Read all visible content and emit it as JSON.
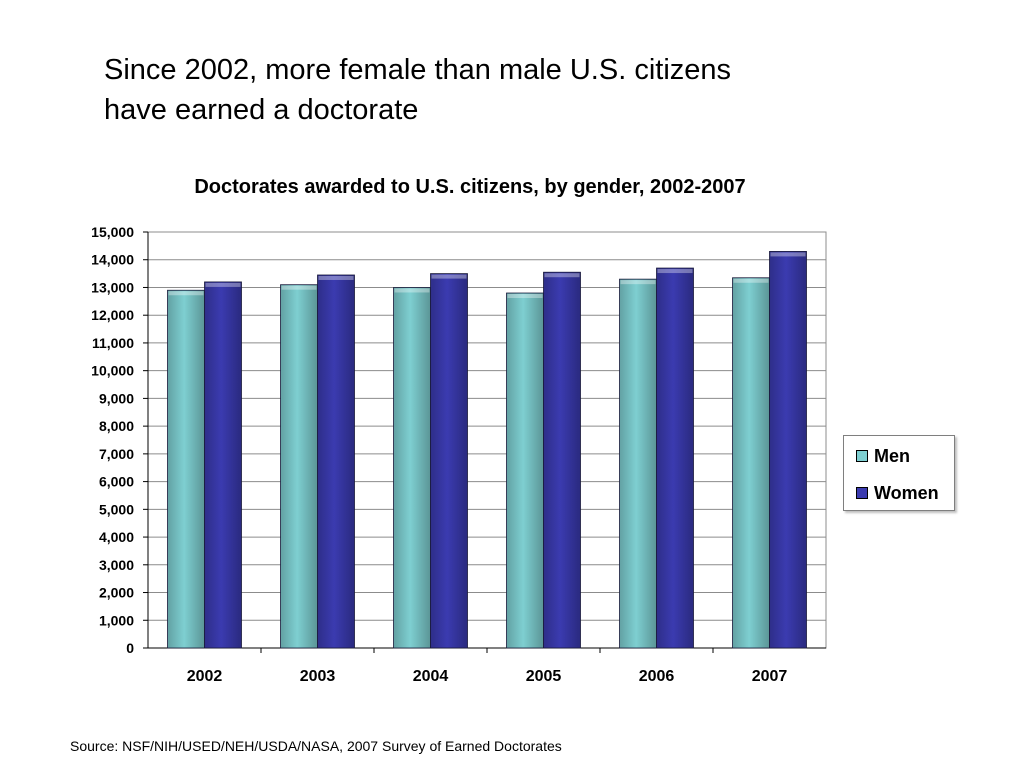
{
  "slide": {
    "title_lines": [
      "Since 2002, more female than male U.S. citizens",
      "have earned a doctorate"
    ],
    "source": "Source: NSF/NIH/USED/NEH/USDA/NASA, 2007 Survey of Earned Doctorates"
  },
  "chart_data": {
    "type": "bar",
    "title": "Doctorates awarded to U.S. citizens, by gender, 2002-2007",
    "xlabel": "",
    "ylabel": "",
    "categories": [
      "2002",
      "2003",
      "2004",
      "2005",
      "2006",
      "2007"
    ],
    "series": [
      {
        "name": "Men",
        "color": "#7ecfd1",
        "values": [
          12900,
          13100,
          13000,
          12800,
          13300,
          13350
        ]
      },
      {
        "name": "Women",
        "color": "#3b3bb0",
        "values": [
          13200,
          13450,
          13500,
          13550,
          13700,
          14300
        ]
      }
    ],
    "ylim": [
      0,
      15000
    ],
    "yticks": [
      0,
      1000,
      2000,
      3000,
      4000,
      5000,
      6000,
      7000,
      8000,
      9000,
      10000,
      11000,
      12000,
      13000,
      14000,
      15000
    ],
    "ytick_labels": [
      "0",
      "1,000",
      "2,000",
      "3,000",
      "4,000",
      "5,000",
      "6,000",
      "7,000",
      "8,000",
      "9,000",
      "10,000",
      "11,000",
      "12,000",
      "13,000",
      "14,000",
      "15,000"
    ],
    "grid": true,
    "legend": "right"
  }
}
